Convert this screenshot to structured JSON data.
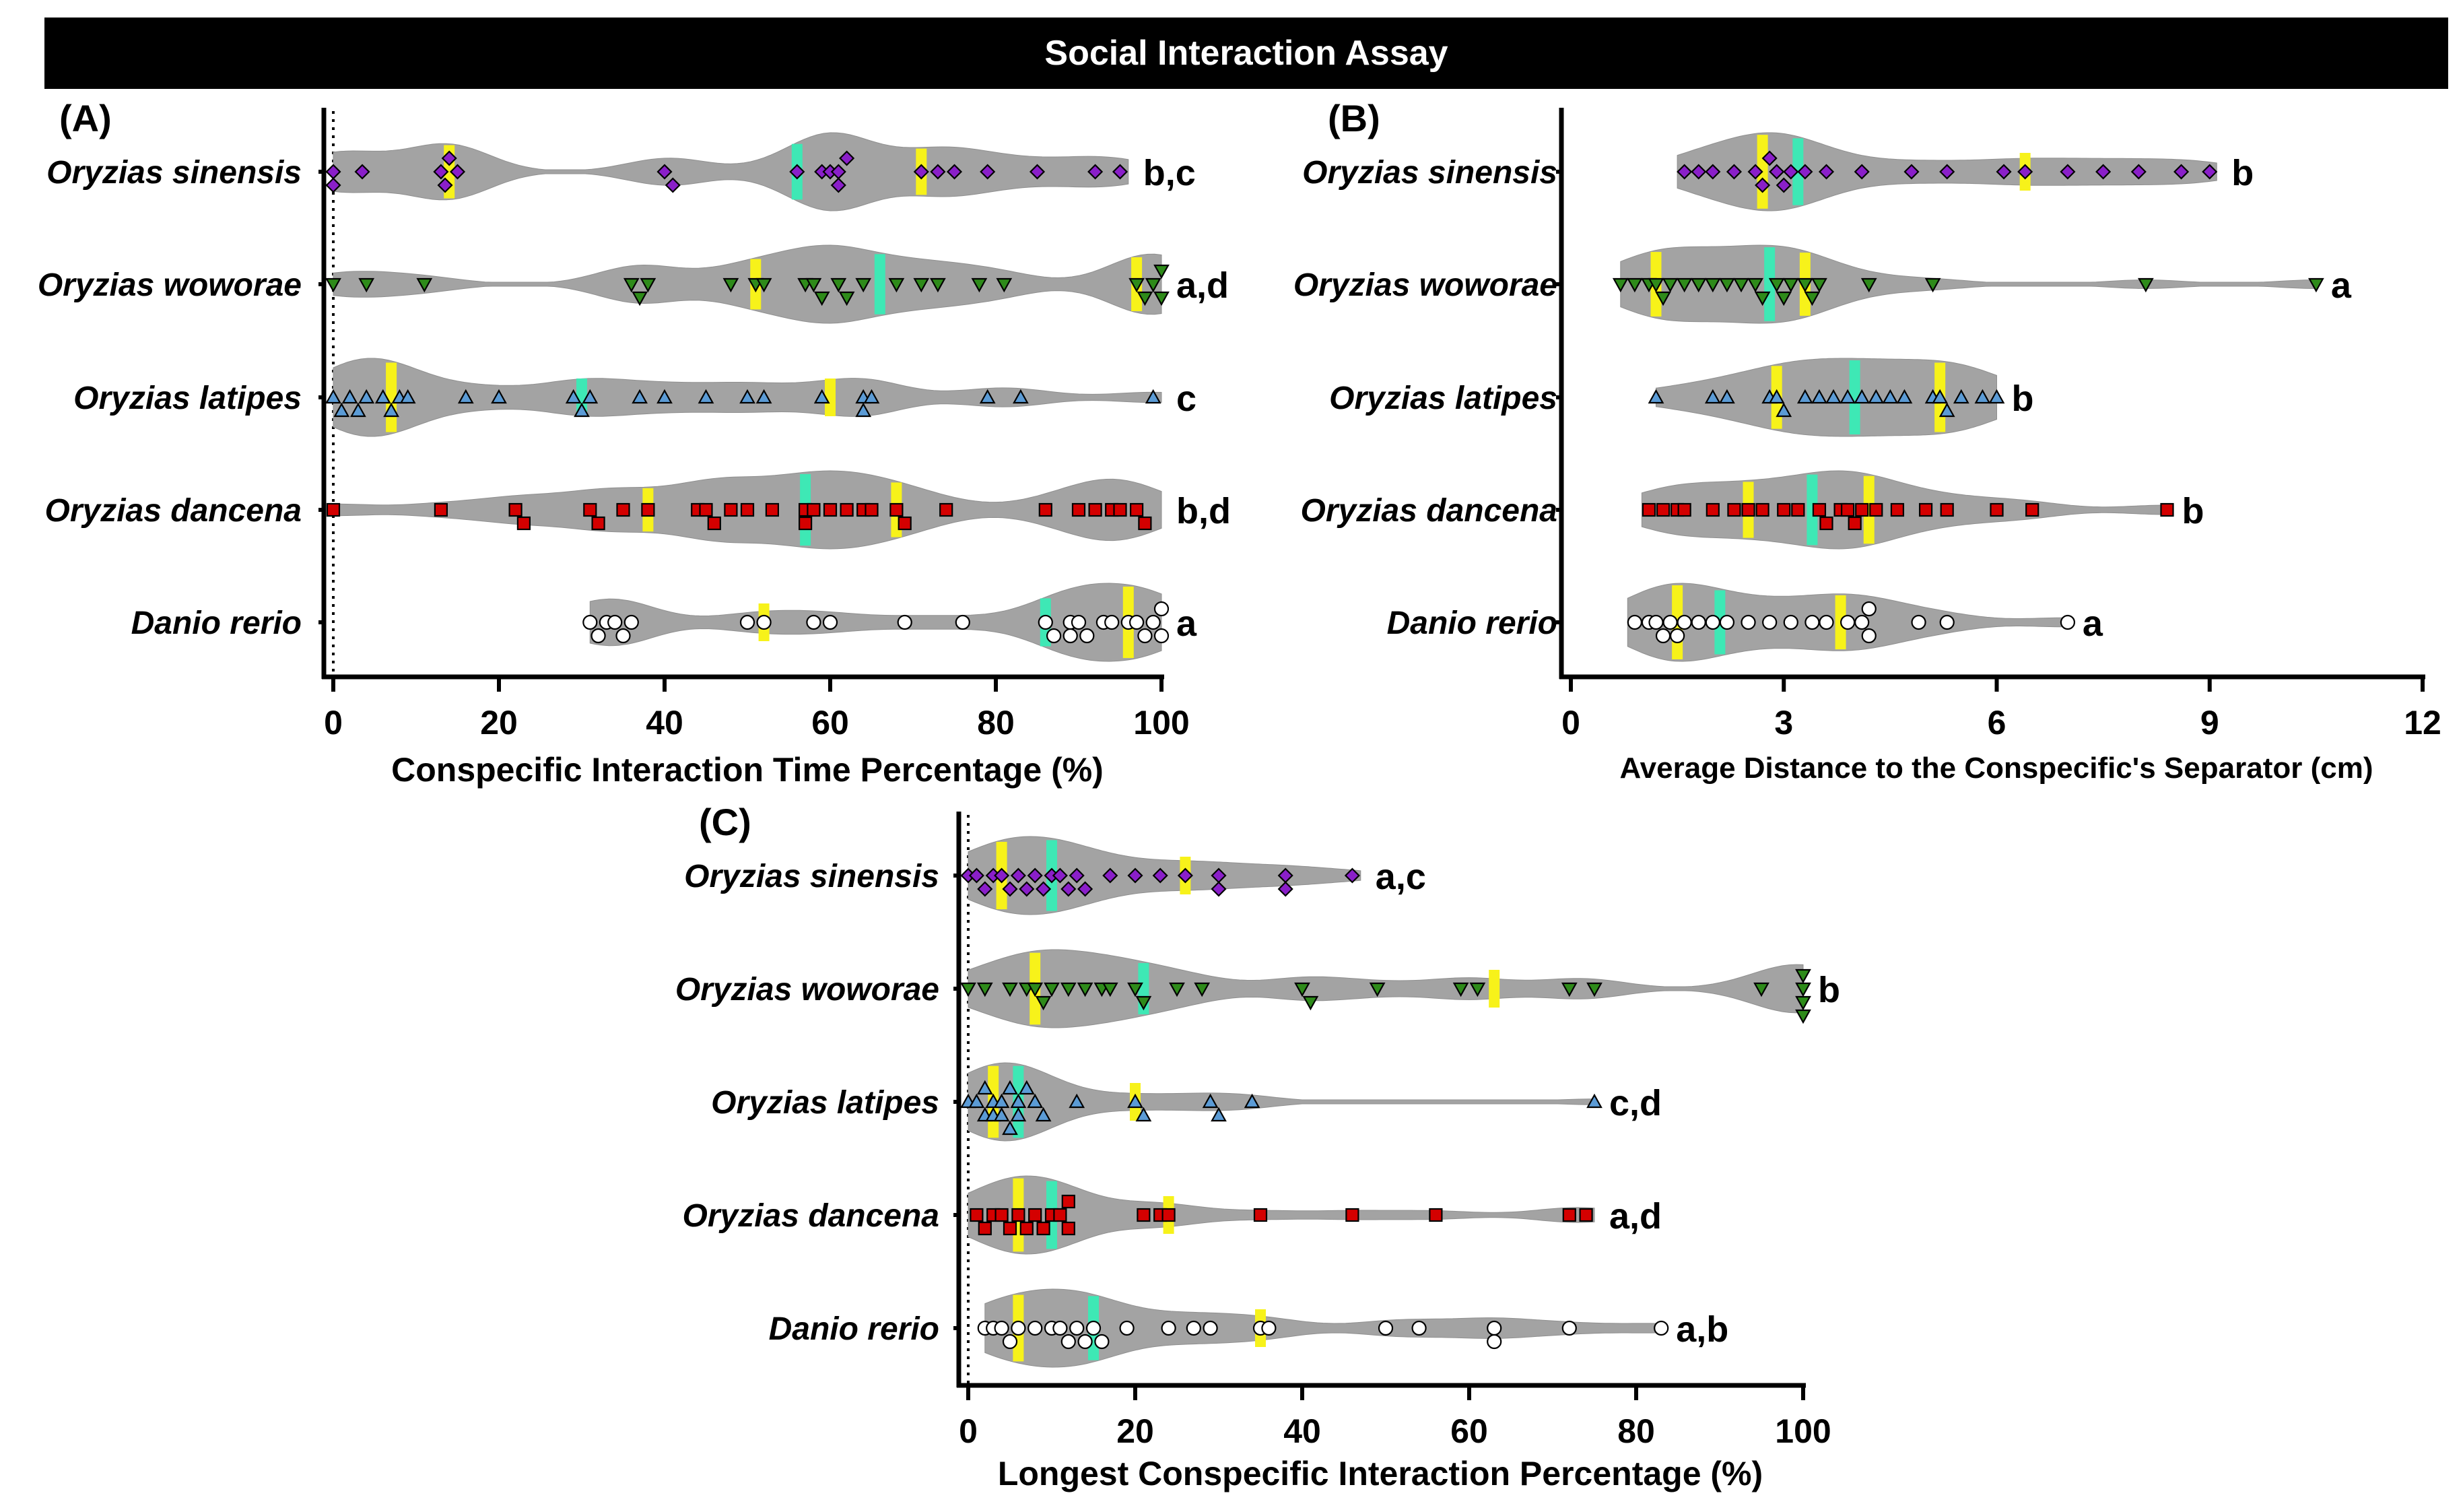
{
  "figure_title": "Social Interaction Assay",
  "colors": {
    "violin": "#a3a3a3",
    "median": "#3ee8b5",
    "quartile": "#f7f21a",
    "sinensis": "#8a1fc9",
    "woworae": "#2e8b1a",
    "latipes": "#5b9bd5",
    "dancena": "#d40000",
    "rerio": "#ffffff"
  },
  "chart_data": [
    {
      "type": "violin",
      "panel": "(A)",
      "xlabel": "Conspecific Interaction Time Percentage (%)",
      "xlim": [
        0,
        100
      ],
      "ticks": [
        "0",
        "20",
        "40",
        "60",
        "80",
        "100"
      ],
      "tick_values": [
        0,
        20,
        40,
        60,
        80,
        100
      ],
      "reference_line": 0,
      "groups": [
        {
          "name": "Oryzias sinensis",
          "marker": "diamond",
          "color_key": "sinensis",
          "median": 56,
          "q1": 14,
          "q3": 71,
          "min": 0,
          "max": 96,
          "sig": "b,c",
          "points": [
            0,
            0,
            3.5,
            13,
            13.5,
            14,
            15,
            40,
            41,
            56,
            59,
            60,
            61,
            62,
            61,
            71,
            73,
            75,
            79,
            85,
            92,
            95
          ]
        },
        {
          "name": "Oryzias woworae",
          "marker": "tri-down",
          "color_key": "woworae",
          "median": 66,
          "q1": 51,
          "q3": 97,
          "min": 0,
          "max": 100,
          "sig": "a,d",
          "points": [
            0,
            4,
            11,
            36,
            37,
            38,
            48,
            51,
            52,
            57,
            58,
            59,
            61,
            62,
            64,
            68,
            71,
            73,
            78,
            81,
            97,
            98,
            99,
            100,
            100
          ]
        },
        {
          "name": "Oryzias latipes",
          "marker": "tri-up",
          "color_key": "latipes",
          "median": 30,
          "q1": 7,
          "q3": 60,
          "min": 0,
          "max": 100,
          "sig": "c",
          "points": [
            0,
            1,
            2,
            3,
            4,
            6,
            7,
            8,
            9,
            16,
            20,
            29,
            30,
            31,
            37,
            40,
            45,
            50,
            52,
            59,
            64,
            64,
            65,
            79,
            83,
            99
          ]
        },
        {
          "name": "Oryzias dancena",
          "marker": "square",
          "color_key": "dancena",
          "median": 57,
          "q1": 38,
          "q3": 68,
          "min": 0,
          "max": 100,
          "sig": "b,d",
          "points": [
            0,
            13,
            22,
            23,
            31,
            32,
            35,
            38,
            44,
            45,
            46,
            48,
            50,
            53,
            57,
            57,
            58,
            60,
            62,
            64,
            65,
            68,
            69,
            74,
            86,
            90,
            92,
            94,
            95,
            97,
            98
          ]
        },
        {
          "name": "Danio rerio",
          "marker": "circle",
          "color_key": "rerio",
          "median": 86,
          "q1": 52,
          "q3": 96,
          "min": 31,
          "max": 100,
          "sig": "a",
          "points": [
            31,
            32,
            33,
            34,
            35,
            36,
            50,
            52,
            58,
            60,
            69,
            76,
            86,
            87,
            89,
            89,
            90,
            91,
            93,
            94,
            96,
            97,
            98,
            99,
            100,
            100
          ]
        }
      ]
    },
    {
      "type": "violin",
      "panel": "(B)",
      "xlabel": "Average Distance to the Conspecific's Separator (cm)",
      "xlim": [
        0,
        12
      ],
      "ticks": [
        "0",
        "3",
        "6",
        "9",
        "12"
      ],
      "tick_values": [
        0,
        3,
        6,
        9,
        12
      ],
      "groups": [
        {
          "name": "Oryzias sinensis",
          "marker": "diamond",
          "color_key": "sinensis",
          "median": 3.2,
          "q1": 2.7,
          "q3": 6.4,
          "min": 1.5,
          "max": 9.1,
          "sig": "b",
          "points": [
            1.6,
            1.8,
            2.0,
            2.3,
            2.6,
            2.7,
            2.8,
            2.9,
            3.0,
            3.1,
            3.3,
            3.6,
            4.1,
            4.8,
            5.3,
            6.1,
            6.4,
            7.0,
            7.5,
            8.0,
            8.6,
            9.0
          ]
        },
        {
          "name": "Oryzias woworae",
          "marker": "tri-down",
          "color_key": "woworae",
          "median": 2.8,
          "q1": 1.2,
          "q3": 3.3,
          "min": 0.7,
          "max": 10.5,
          "sig": "a",
          "points": [
            0.7,
            0.9,
            1.1,
            1.2,
            1.3,
            1.4,
            1.6,
            1.8,
            2.0,
            2.2,
            2.4,
            2.6,
            2.7,
            2.9,
            3.0,
            3.1,
            3.3,
            3.4,
            3.5,
            4.2,
            5.1,
            8.1,
            10.5
          ]
        },
        {
          "name": "Oryzias latipes",
          "marker": "tri-up",
          "color_key": "latipes",
          "median": 4.0,
          "q1": 2.9,
          "q3": 5.2,
          "min": 1.2,
          "max": 6.0,
          "sig": "b",
          "points": [
            1.2,
            2.0,
            2.2,
            2.8,
            2.9,
            3.0,
            3.3,
            3.5,
            3.7,
            3.9,
            4.1,
            4.3,
            4.5,
            4.7,
            5.1,
            5.2,
            5.3,
            5.5,
            5.8,
            6.0
          ]
        },
        {
          "name": "Oryzias dancena",
          "marker": "square",
          "color_key": "dancena",
          "median": 3.4,
          "q1": 2.5,
          "q3": 4.2,
          "min": 1.0,
          "max": 8.4,
          "sig": "b",
          "points": [
            1.1,
            1.3,
            1.5,
            1.6,
            2.0,
            2.3,
            2.5,
            2.7,
            3.0,
            3.2,
            3.5,
            3.6,
            3.8,
            3.9,
            4.0,
            4.1,
            4.3,
            4.6,
            5.0,
            5.3,
            6.0,
            6.5,
            8.4
          ]
        },
        {
          "name": "Danio rerio",
          "marker": "circle",
          "color_key": "rerio",
          "median": 2.1,
          "q1": 1.5,
          "q3": 3.8,
          "min": 0.8,
          "max": 7.0,
          "sig": "a",
          "points": [
            0.9,
            1.1,
            1.2,
            1.3,
            1.4,
            1.5,
            1.6,
            1.8,
            2.0,
            2.2,
            2.5,
            2.8,
            3.1,
            3.4,
            3.6,
            3.9,
            4.1,
            4.2,
            4.2,
            4.9,
            5.3,
            7.0
          ]
        }
      ]
    },
    {
      "type": "violin",
      "panel": "(C)",
      "xlabel": "Longest Conspecific Interaction Percentage (%)",
      "xlim": [
        0,
        100
      ],
      "ticks": [
        "0",
        "20",
        "40",
        "60",
        "80",
        "100"
      ],
      "tick_values": [
        0,
        20,
        40,
        60,
        80,
        100
      ],
      "reference_line": 0,
      "groups": [
        {
          "name": "Oryzias sinensis",
          "marker": "diamond",
          "color_key": "sinensis",
          "median": 10,
          "q1": 4,
          "q3": 26,
          "min": 0,
          "max": 47,
          "sig": "a,c",
          "points": [
            0,
            1,
            2,
            3,
            4,
            5,
            6,
            7,
            8,
            9,
            10,
            11,
            12,
            13,
            14,
            17,
            20,
            23,
            26,
            30,
            30,
            38,
            38,
            46
          ]
        },
        {
          "name": "Oryzias woworae",
          "marker": "tri-down",
          "color_key": "woworae",
          "median": 21,
          "q1": 8,
          "q3": 63,
          "min": 0,
          "max": 100,
          "sig": "b",
          "points": [
            0,
            2,
            5,
            7,
            8,
            9,
            10,
            12,
            14,
            16,
            17,
            20,
            21,
            25,
            28,
            40,
            41,
            49,
            59,
            61,
            72,
            75,
            95,
            100,
            100,
            100,
            100
          ]
        },
        {
          "name": "Oryzias latipes",
          "marker": "tri-up",
          "color_key": "latipes",
          "median": 6,
          "q1": 3,
          "q3": 20,
          "min": 0,
          "max": 75,
          "sig": "c,d",
          "points": [
            0,
            1,
            2,
            2,
            3,
            3,
            4,
            4,
            5,
            5,
            6,
            6,
            7,
            8,
            9,
            13,
            20,
            21,
            29,
            30,
            34,
            75
          ]
        },
        {
          "name": "Oryzias dancena",
          "marker": "square",
          "color_key": "dancena",
          "median": 10,
          "q1": 6,
          "q3": 24,
          "min": 0,
          "max": 75,
          "sig": "a,d",
          "points": [
            1,
            2,
            3,
            4,
            5,
            6,
            7,
            8,
            9,
            10,
            11,
            12,
            12,
            21,
            23,
            24,
            35,
            46,
            56,
            72,
            74
          ]
        },
        {
          "name": "Danio rerio",
          "marker": "circle",
          "color_key": "rerio",
          "median": 15,
          "q1": 6,
          "q3": 35,
          "min": 2,
          "max": 83,
          "sig": "a,b",
          "points": [
            2,
            3,
            4,
            5,
            6,
            8,
            10,
            11,
            12,
            13,
            14,
            15,
            16,
            19,
            24,
            27,
            29,
            35,
            36,
            50,
            54,
            63,
            63,
            72,
            83
          ]
        }
      ]
    }
  ]
}
